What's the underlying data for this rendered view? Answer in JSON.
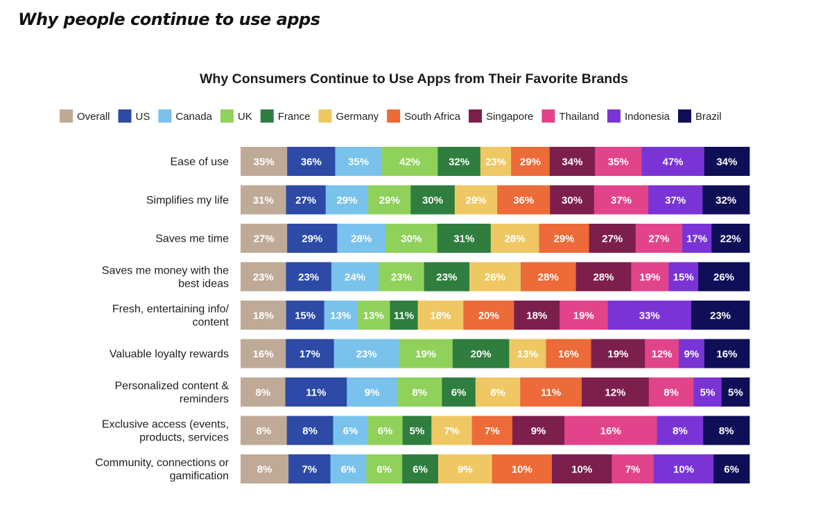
{
  "page": {
    "heading": "Why people continue to use apps"
  },
  "chart_data": {
    "type": "bar",
    "orientation": "horizontal",
    "stacked": true,
    "title": "Why Consumers Continue to Use Apps from Their Favorite Brands",
    "xlabel": "",
    "ylabel": "",
    "grid": false,
    "legend_position": "top",
    "value_suffix": "%",
    "categories": [
      [
        "Ease of use"
      ],
      [
        "Simplifies my life"
      ],
      [
        "Saves me time"
      ],
      [
        "Saves me money with the",
        "best ideas"
      ],
      [
        "Fresh, entertaining info/",
        "content"
      ],
      [
        "Valuable loyalty rewards"
      ],
      [
        "Personalized content &",
        "reminders"
      ],
      [
        "Exclusive access (events,",
        "products, services"
      ],
      [
        "Community, connections or",
        "gamification"
      ]
    ],
    "series": [
      {
        "name": "Overall",
        "color": "#bfaa98",
        "label_color": "#ffffff",
        "values": [
          35,
          31,
          27,
          23,
          18,
          16,
          8,
          8,
          8
        ]
      },
      {
        "name": "US",
        "color": "#2c4aa6",
        "label_color": "#ffffff",
        "values": [
          36,
          27,
          29,
          23,
          15,
          17,
          11,
          8,
          7
        ]
      },
      {
        "name": "Canada",
        "color": "#79c2ec",
        "label_color": "#ffffff",
        "values": [
          35,
          29,
          28,
          24,
          13,
          23,
          9,
          6,
          6
        ]
      },
      {
        "name": "UK",
        "color": "#8fd15a",
        "label_color": "#ffffff",
        "values": [
          42,
          29,
          30,
          23,
          13,
          19,
          8,
          6,
          6
        ]
      },
      {
        "name": "France",
        "color": "#2f7e3f",
        "label_color": "#ffffff",
        "values": [
          32,
          30,
          31,
          23,
          11,
          20,
          6,
          5,
          6
        ]
      },
      {
        "name": "Germany",
        "color": "#efc863",
        "label_color": "#ffffff",
        "values": [
          23,
          29,
          28,
          26,
          18,
          13,
          8,
          7,
          9
        ]
      },
      {
        "name": "South Africa",
        "color": "#ec6b38",
        "label_color": "#ffffff",
        "values": [
          29,
          36,
          29,
          28,
          20,
          16,
          11,
          7,
          10
        ]
      },
      {
        "name": "Singapore",
        "color": "#7c1f4d",
        "label_color": "#ffffff",
        "values": [
          34,
          30,
          27,
          28,
          18,
          19,
          12,
          9,
          10
        ]
      },
      {
        "name": "Thailand",
        "color": "#e2448b",
        "label_color": "#ffffff",
        "values": [
          35,
          37,
          27,
          19,
          19,
          12,
          8,
          16,
          7
        ]
      },
      {
        "name": "Indonesia",
        "color": "#7a34d6",
        "label_color": "#ffffff",
        "values": [
          47,
          37,
          17,
          15,
          33,
          9,
          5,
          8,
          10
        ]
      },
      {
        "name": "Brazil",
        "color": "#0f0f58",
        "label_color": "#ffffff",
        "values": [
          34,
          32,
          22,
          26,
          23,
          16,
          5,
          8,
          6
        ]
      }
    ]
  }
}
